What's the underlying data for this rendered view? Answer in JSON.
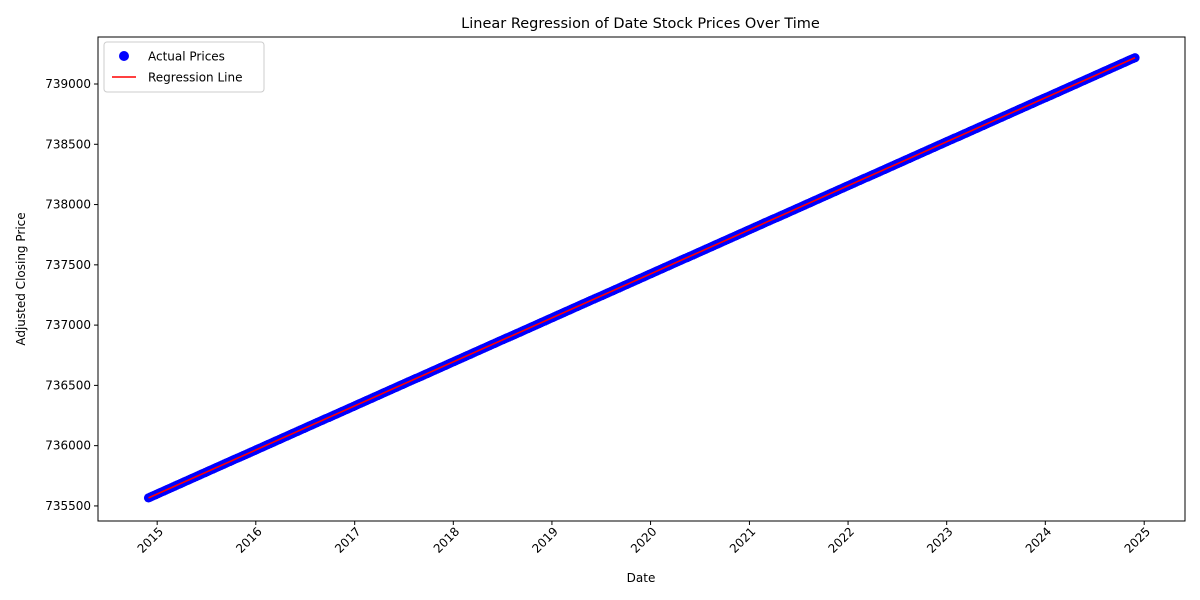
{
  "chart_data": {
    "type": "scatter",
    "title": "Linear Regression of Date Stock Prices Over Time",
    "xlabel": "Date",
    "ylabel": "Adjusted Closing Price",
    "x_axis_type": "date",
    "xlim": [
      "2014-05-27",
      "2025-06-01"
    ],
    "ylim": [
      735375,
      739390
    ],
    "x_ticks": [
      "2015",
      "2016",
      "2017",
      "2018",
      "2019",
      "2020",
      "2021",
      "2022",
      "2023",
      "2024",
      "2025"
    ],
    "y_ticks": [
      "735500",
      "736000",
      "736500",
      "737000",
      "737500",
      "738000",
      "738500",
      "739000"
    ],
    "grid": false,
    "legend_position": "top-left",
    "series": [
      {
        "name": "Actual Prices",
        "kind": "scatter",
        "color": "#0000ff",
        "x_start": "2014-11-30",
        "x_end": "2024-11-28",
        "y_start": 735567,
        "y_end": 739218
      },
      {
        "name": "Regression Line",
        "kind": "line",
        "color": "#ff0000",
        "x": [
          "2014-11-30",
          "2024-11-28"
        ],
        "y": [
          735567,
          739218
        ]
      }
    ]
  }
}
